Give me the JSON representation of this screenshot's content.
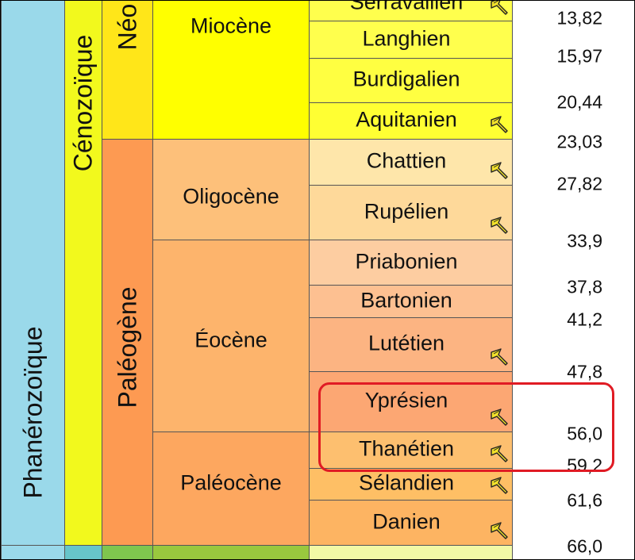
{
  "eon": {
    "label": "Phanérozoïque",
    "color": "#9ad9ea"
  },
  "era": {
    "label": "Cénozoïque",
    "color": "#f2f91d"
  },
  "periods": [
    {
      "label": "Néo",
      "color": "#ffe619"
    },
    {
      "label": "Paléogène",
      "color": "#fd9a52"
    }
  ],
  "epochs": [
    {
      "label": "Miocène",
      "color": "#ffff00"
    },
    {
      "label": "Oligocène",
      "color": "#fdc07a"
    },
    {
      "label": "Éocène",
      "color": "#fdb46c"
    },
    {
      "label": "Paléocène",
      "color": "#fda75f"
    }
  ],
  "stages": [
    {
      "label": "Serravallien",
      "color": "#ffff4d"
    },
    {
      "label": "Langhien",
      "color": "#ffff4d"
    },
    {
      "label": "Burdigalien",
      "color": "#ffff41"
    },
    {
      "label": "Aquitanien",
      "color": "#ffff33"
    },
    {
      "label": "Chattien",
      "color": "#fee6aa"
    },
    {
      "label": "Rupélien",
      "color": "#fed99a"
    },
    {
      "label": "Priabonien",
      "color": "#fdcda1"
    },
    {
      "label": "Bartonien",
      "color": "#fdc091"
    },
    {
      "label": "Lutétien",
      "color": "#fcb482"
    },
    {
      "label": "Yprésien",
      "color": "#fca773"
    },
    {
      "label": "Thanétien",
      "color": "#fdbf6f"
    },
    {
      "label": "Sélandien",
      "color": "#febf65"
    },
    {
      "label": "Danien",
      "color": "#fdb462"
    }
  ],
  "ages": [
    "13,82",
    "15,97",
    "20,44",
    "23,03",
    "27,82",
    "33,9",
    "37,8",
    "41,2",
    "47,8",
    "56,0",
    "59,2",
    "61,6",
    "66,0"
  ],
  "below_colors": [
    "#9ad9ea",
    "#67c5ca",
    "#7fc64e",
    "#99c83e",
    "#f2f9a6"
  ],
  "gssp_color": "#f3e22a",
  "highlight_color": "#e01b24"
}
